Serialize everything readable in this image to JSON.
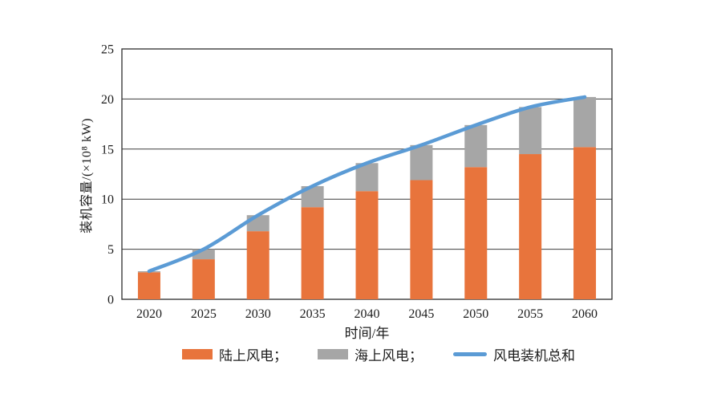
{
  "chart_data": {
    "type": "bar",
    "subtype": "stacked-bar-with-line",
    "title": "",
    "categories": [
      "2020",
      "2025",
      "2030",
      "2035",
      "2040",
      "2045",
      "2050",
      "2055",
      "2060"
    ],
    "series": [
      {
        "key": "onshore",
        "name": "陆上风电",
        "render": "bar",
        "color": "#E8743C",
        "values": [
          2.7,
          4.0,
          6.8,
          9.2,
          10.8,
          11.9,
          13.2,
          14.5,
          15.2
        ]
      },
      {
        "key": "offshore",
        "name": "海上风电",
        "render": "bar",
        "color": "#A6A6A6",
        "values": [
          0.1,
          1.0,
          1.6,
          2.1,
          2.8,
          3.5,
          4.2,
          4.7,
          5.0
        ]
      },
      {
        "key": "total",
        "name": "风电装机总和",
        "render": "line",
        "color": "#5B9BD5",
        "values": [
          2.8,
          5.0,
          8.4,
          11.3,
          13.6,
          15.4,
          17.4,
          19.2,
          20.2
        ]
      }
    ],
    "stacked": true,
    "xlabel": "时间/年",
    "ylabel": "装机容量/(×10⁸ kW)",
    "ylim": [
      0,
      25
    ],
    "yticks": [
      0,
      5,
      10,
      15,
      20,
      25
    ],
    "grid": "horizontal",
    "legend_position": "bottom",
    "legend": [
      {
        "label": "陆上风电；",
        "swatch": "rect",
        "color": "#E8743C"
      },
      {
        "label": "海上风电；",
        "swatch": "rect",
        "color": "#A6A6A6"
      },
      {
        "label": "风电装机总和",
        "swatch": "line",
        "color": "#5B9BD5"
      }
    ]
  },
  "style": {
    "axis_color": "#2e2e2e",
    "grid_color": "#3c3c3c",
    "text_color": "#1c1c1c",
    "background": "#ffffff"
  }
}
